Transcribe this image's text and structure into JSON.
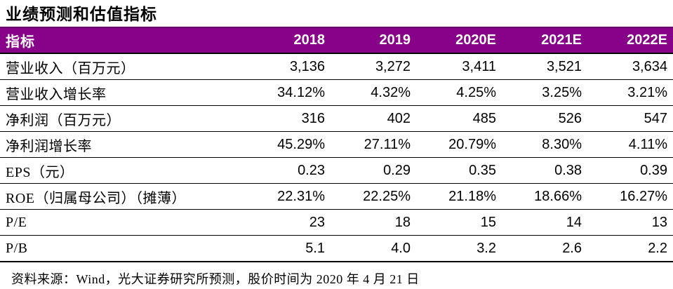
{
  "title": "业绩预测和估值指标",
  "colors": {
    "header_bg": "#870189",
    "header_text": "#ffffff",
    "rule_color": "#000000",
    "body_text": "#000000"
  },
  "table": {
    "columns": [
      "指标",
      "2018",
      "2019",
      "2020E",
      "2021E",
      "2022E"
    ],
    "rows": [
      {
        "label": "营业收入（百万元）",
        "values": [
          "3,136",
          "3,272",
          "3,411",
          "3,521",
          "3,634"
        ]
      },
      {
        "label": "营业收入增长率",
        "values": [
          "34.12%",
          "4.32%",
          "4.25%",
          "3.25%",
          "3.21%"
        ]
      },
      {
        "label": "净利润（百万元）",
        "values": [
          "316",
          "402",
          "485",
          "526",
          "547"
        ]
      },
      {
        "label": "净利润增长率",
        "values": [
          "45.29%",
          "27.11%",
          "20.79%",
          "8.30%",
          "4.11%"
        ]
      },
      {
        "label": "EPS（元）",
        "values": [
          "0.23",
          "0.29",
          "0.35",
          "0.38",
          "0.39"
        ]
      },
      {
        "label": "ROE（归属母公司）（摊薄）",
        "values": [
          "22.31%",
          "22.25%",
          "21.18%",
          "18.66%",
          "16.27%"
        ]
      },
      {
        "label": "P/E",
        "values": [
          "23",
          "18",
          "15",
          "14",
          "13"
        ]
      },
      {
        "label": "P/B",
        "values": [
          "5.1",
          "4.0",
          "3.2",
          "2.6",
          "2.2"
        ]
      }
    ]
  },
  "source_note": "资料来源：Wind，光大证券研究所预测，股价时间为 2020 年 4 月 21 日"
}
